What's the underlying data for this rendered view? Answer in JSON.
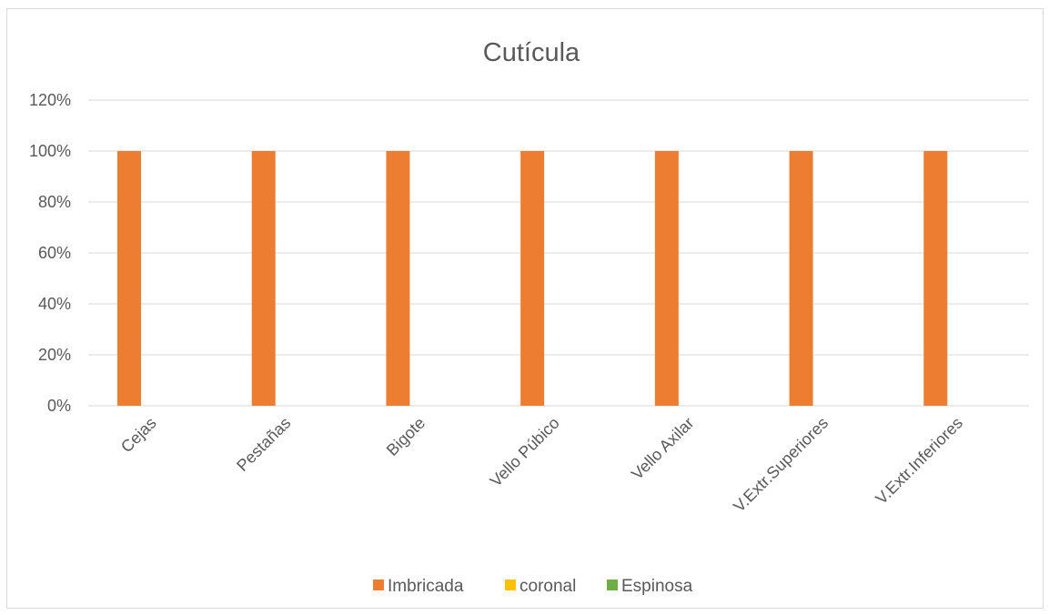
{
  "chart_data": {
    "type": "bar",
    "title": "Cutícula",
    "categories": [
      "Cejas",
      "Pestañas",
      "Bigote",
      "Vello Púbico",
      "Vello Axilar",
      "V.Extr.Superiores",
      "V.Extr.Inferiores"
    ],
    "series": [
      {
        "name": "Imbricada",
        "color": "#ED7D31",
        "values": [
          100,
          100,
          100,
          100,
          100,
          100,
          100
        ]
      },
      {
        "name": "coronal",
        "color": "#FFC000",
        "values": [
          0,
          0,
          0,
          0,
          0,
          0,
          0
        ]
      },
      {
        "name": "Espinosa",
        "color": "#70AD47",
        "values": [
          0,
          0,
          0,
          0,
          0,
          0,
          0
        ]
      }
    ],
    "ylim": [
      0,
      120
    ],
    "yticks": [
      0,
      20,
      40,
      60,
      80,
      100,
      120
    ],
    "ytick_labels": [
      "0%",
      "20%",
      "40%",
      "60%",
      "80%",
      "100%",
      "120%"
    ],
    "grid": true,
    "legend_position": "bottom"
  }
}
